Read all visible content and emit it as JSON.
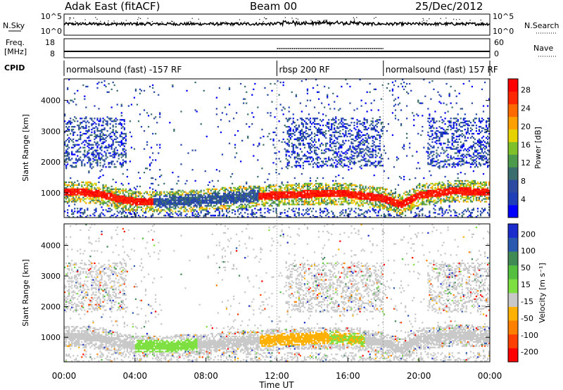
{
  "header": {
    "station": "Adak East (fitACF)",
    "beam": "Beam 00",
    "date": "25/Dec/2012"
  },
  "strips": {
    "nsky_label": "N.Sky",
    "nsky_ticks": [
      "10^5",
      "10^0"
    ],
    "nsearch_label": "N.Search",
    "nsearch_ticks": [
      "10^5",
      "10^0"
    ],
    "freq_label_line1": "Freq.",
    "freq_label_line2": "[MHz]",
    "freq_ticks": [
      "18",
      "8"
    ],
    "nave_label": "Nave",
    "nave_ticks": [
      "60",
      "0"
    ],
    "cpid_label": "CPID",
    "cpid_segments": [
      {
        "label": "normalsound (fast) -157 RF",
        "start_hour": 0,
        "end_hour": 12
      },
      {
        "label": "rbsp 200 RF",
        "start_hour": 12,
        "end_hour": 18
      },
      {
        "label": "normalsound (fast) 157 RF",
        "start_hour": 18,
        "end_hour": 24
      }
    ]
  },
  "panels": {
    "ylabel": "Slant Range [km]",
    "yticks": [
      "1000",
      "2000",
      "3000",
      "4000"
    ],
    "xticks": [
      "00:00",
      "04:00",
      "08:00",
      "12:00",
      "16:00",
      "20:00",
      "00:00"
    ],
    "xlabel": "Time UT",
    "power_title": "Power [dB]",
    "power_ticks": [
      "4",
      "8",
      "12",
      "16",
      "20",
      "24",
      "28"
    ],
    "power_colors": [
      "#0000ff",
      "#1e3fb8",
      "#2c4aa0",
      "#3a6e6e",
      "#4c9a4c",
      "#7ec02a",
      "#e6d200",
      "#ffa000",
      "#ff6a00",
      "#ff2800",
      "#ff0000"
    ],
    "velocity_title": "Velocity [m s⁻¹]",
    "velocity_ticks": [
      "200",
      "100",
      "50",
      "15",
      "-15",
      "-50",
      "-100",
      "-200"
    ],
    "velocity_colors": [
      "#1a2ccc",
      "#2a5ab0",
      "#3f8a55",
      "#55c040",
      "#7de040",
      "#c8c8c8",
      "#ffb000",
      "#ff8000",
      "#ff4000",
      "#ff0000"
    ]
  },
  "chart_data": [
    {
      "type": "area",
      "title": "N.Sky / N.Search",
      "xlabel": "Time UT",
      "xlim": [
        0,
        24
      ],
      "yscale": "log",
      "ylim_labels": [
        "10^0",
        "10^5"
      ]
    },
    {
      "type": "line",
      "title": "Freq. [MHz] / Nave",
      "xlim": [
        0,
        24
      ],
      "ylim": [
        8,
        18
      ],
      "nave_ylim": [
        0,
        60
      ]
    },
    {
      "type": "heatmap",
      "title": "Power [dB]",
      "xlabel": "Time UT",
      "ylabel": "Slant Range [km]",
      "xlim": [
        0,
        24
      ],
      "ylim": [
        200,
        4700
      ],
      "colorbar_range": [
        0,
        30
      ],
      "main_echo_band_range_km": [
        [
          0,
          1000
        ],
        [
          1,
          1000
        ],
        [
          2,
          950
        ],
        [
          3,
          800
        ],
        [
          4,
          700
        ],
        [
          6,
          700
        ],
        [
          8,
          750
        ],
        [
          10,
          850
        ],
        [
          12,
          900
        ],
        [
          14,
          950
        ],
        [
          16,
          950
        ],
        [
          18,
          800
        ],
        [
          19,
          600
        ],
        [
          20,
          900
        ],
        [
          22,
          1050
        ],
        [
          24,
          1000
        ]
      ]
    },
    {
      "type": "heatmap",
      "title": "Velocity [m s⁻¹]",
      "xlabel": "Time UT",
      "ylabel": "Slant Range [km]",
      "xlim": [
        0,
        24
      ],
      "ylim": [
        200,
        4700
      ],
      "colorbar_range": [
        -200,
        200
      ]
    }
  ]
}
